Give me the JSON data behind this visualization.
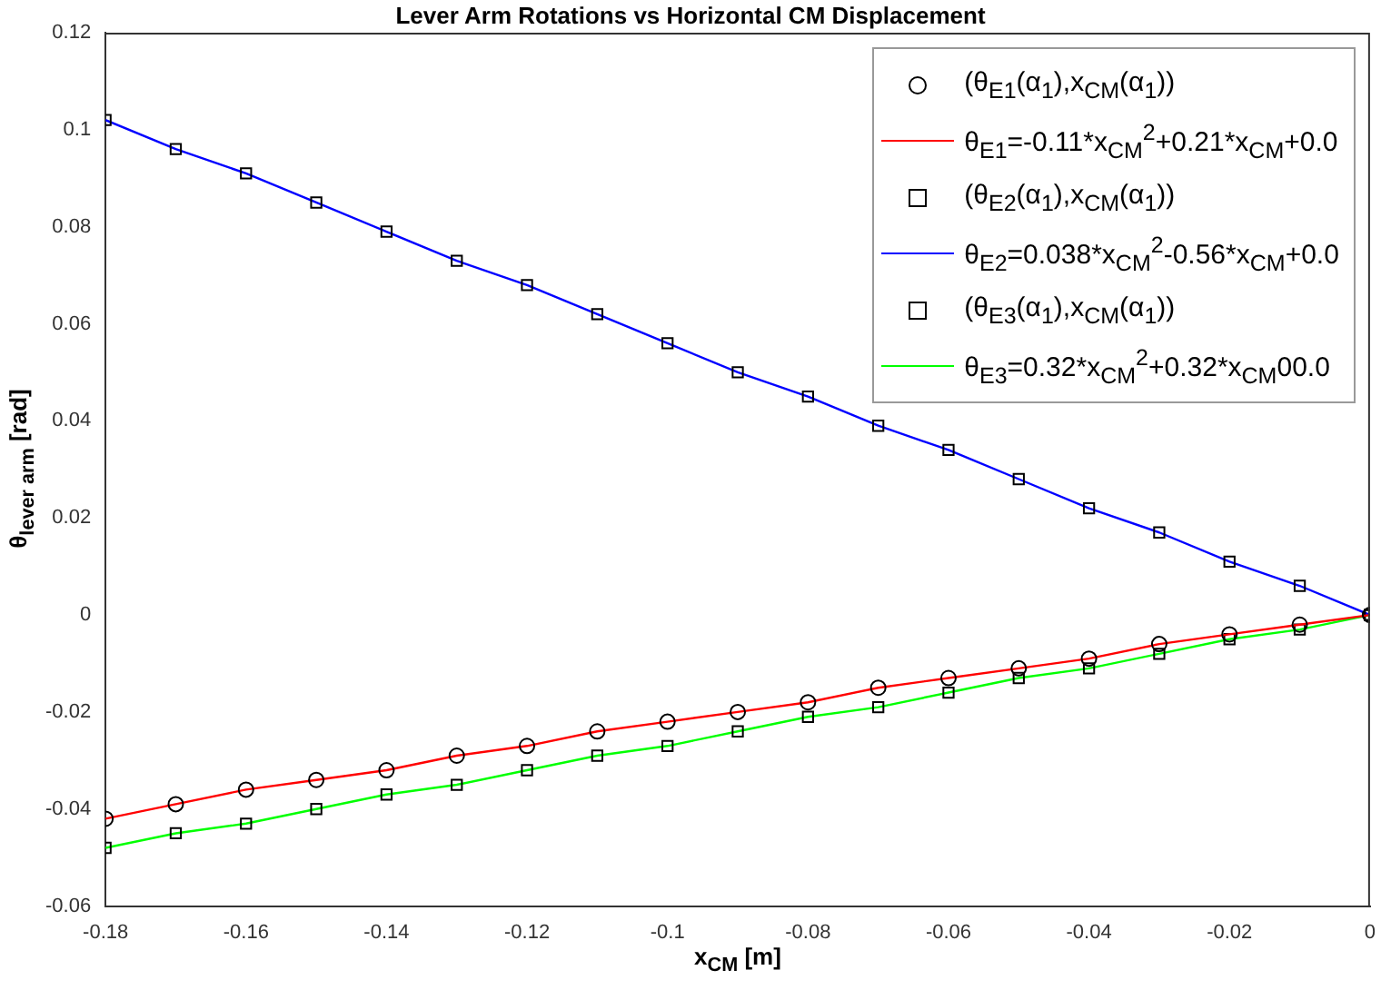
{
  "chart_data": {
    "type": "scatter",
    "title": "Lever Arm Rotations vs Horizontal CM Displacement",
    "xlabel": "x$_{CM}$ [m]",
    "ylabel": "θ$_{lever arm}$ [rad]",
    "x": [
      -0.18,
      -0.17,
      -0.16,
      -0.15,
      -0.14,
      -0.13,
      -0.12,
      -0.11,
      -0.1,
      -0.09,
      -0.08,
      -0.07,
      -0.06,
      -0.05,
      -0.04,
      -0.03,
      -0.02,
      -0.01,
      0
    ],
    "xlim": [
      -0.18,
      0
    ],
    "xticks": [
      -0.18,
      -0.16,
      -0.14,
      -0.12,
      -0.1,
      -0.08,
      -0.06,
      -0.04,
      -0.02,
      0
    ],
    "ylim": [
      -0.06,
      0.12
    ],
    "yticks": [
      -0.06,
      -0.04,
      -0.02,
      0,
      0.02,
      0.04,
      0.06,
      0.08,
      0.1,
      0.12
    ],
    "grid": false,
    "legend": "top right",
    "series": [
      {
        "name": "(θ$_{E1}$(α$_{1}$),x$_{CM}$(α$_{1}$))",
        "marker": "circle",
        "color": "#000000",
        "values": [
          -0.042,
          -0.039,
          -0.036,
          -0.034,
          -0.032,
          -0.029,
          -0.027,
          -0.024,
          -0.022,
          -0.02,
          -0.018,
          -0.015,
          -0.013,
          -0.011,
          -0.009,
          -0.006,
          -0.004,
          -0.002,
          0
        ]
      },
      {
        "name": "θ$_{E1}$=-0.11*x$_{CM}$$^{2}$+0.21*x$_{CM}$+0.0",
        "type": "line",
        "marker": "none",
        "color": "#ff0000",
        "values": [
          -0.042,
          -0.039,
          -0.036,
          -0.034,
          -0.032,
          -0.029,
          -0.027,
          -0.024,
          -0.022,
          -0.02,
          -0.018,
          -0.015,
          -0.013,
          -0.011,
          -0.009,
          -0.006,
          -0.004,
          -0.002,
          0
        ]
      },
      {
        "name": "(θ$_{E2}$(α$_{1}$),x$_{CM}$(α$_{1}$))",
        "marker": "square",
        "color": "#000000",
        "values": [
          0.102,
          0.096,
          0.091,
          0.085,
          0.079,
          0.073,
          0.068,
          0.062,
          0.056,
          0.05,
          0.045,
          0.039,
          0.034,
          0.028,
          0.022,
          0.017,
          0.011,
          0.006,
          0
        ]
      },
      {
        "name": "θ$_{E2}$=0.038*x$_{CM}$$^{2}$-0.56*x$_{CM}$+0.0",
        "type": "line",
        "marker": "none",
        "color": "#0000ff",
        "values": [
          0.102,
          0.096,
          0.091,
          0.085,
          0.079,
          0.073,
          0.068,
          0.062,
          0.056,
          0.05,
          0.045,
          0.039,
          0.034,
          0.028,
          0.022,
          0.017,
          0.011,
          0.006,
          0
        ]
      },
      {
        "name": "(θ$_{E3}$(α$_{1}$),x$_{CM}$(α$_{1}$))",
        "marker": "square",
        "color": "#000000",
        "values": [
          -0.048,
          -0.045,
          -0.043,
          -0.04,
          -0.037,
          -0.035,
          -0.032,
          -0.029,
          -0.027,
          -0.024,
          -0.021,
          -0.019,
          -0.016,
          -0.013,
          -0.011,
          -0.008,
          -0.005,
          -0.003,
          0
        ]
      },
      {
        "name": "θ$_{E3}$=0.32*x$_{CM}$$^{2}$+0.32*x$_{CM}$00.0",
        "type": "line",
        "marker": "none",
        "color": "#00ff00",
        "values": [
          -0.048,
          -0.045,
          -0.043,
          -0.04,
          -0.037,
          -0.035,
          -0.032,
          -0.029,
          -0.027,
          -0.024,
          -0.021,
          -0.019,
          -0.016,
          -0.013,
          -0.011,
          -0.008,
          -0.005,
          -0.003,
          0
        ]
      }
    ]
  }
}
